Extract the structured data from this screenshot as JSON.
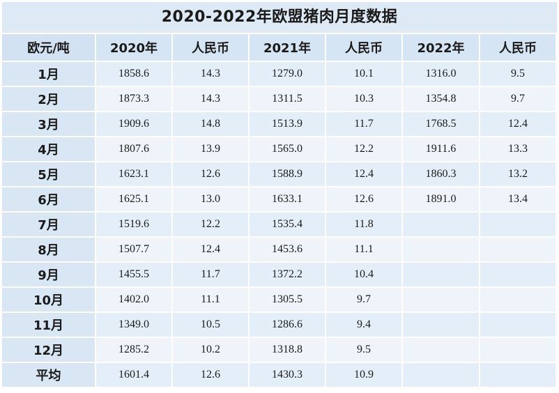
{
  "title": "2020-2022年欧盟猪肉月度数据",
  "headers": [
    "欧元/吨",
    "2020年",
    "人民币",
    "2021年",
    "人民币",
    "2022年",
    "人民币"
  ],
  "rows": [
    [
      "1月",
      "1858.6",
      "14.3",
      "1279.0",
      "10.1",
      "1316.0",
      "9.5"
    ],
    [
      "2月",
      "1873.3",
      "14.3",
      "1311.5",
      "10.3",
      "1354.8",
      "9.7"
    ],
    [
      "3月",
      "1909.6",
      "14.8",
      "1513.9",
      "11.7",
      "1768.5",
      "12.4"
    ],
    [
      "4月",
      "1807.6",
      "13.9",
      "1565.0",
      "12.2",
      "1911.6",
      "13.3"
    ],
    [
      "5月",
      "1623.1",
      "12.6",
      "1588.9",
      "12.4",
      "1860.3",
      "13.2"
    ],
    [
      "6月",
      "1625.1",
      "13.0",
      "1633.1",
      "12.6",
      "1891.0",
      "13.4"
    ],
    [
      "7月",
      "1519.6",
      "12.2",
      "1535.4",
      "11.8",
      "",
      ""
    ],
    [
      "8月",
      "1507.7",
      "12.4",
      "1453.6",
      "11.1",
      "",
      ""
    ],
    [
      "9月",
      "1455.5",
      "11.7",
      "1372.2",
      "10.4",
      "",
      ""
    ],
    [
      "10月",
      "1402.0",
      "11.1",
      "1305.5",
      "9.7",
      "",
      ""
    ],
    [
      "11月",
      "1349.0",
      "10.5",
      "1286.6",
      "9.4",
      "",
      ""
    ],
    [
      "12月",
      "1285.2",
      "10.2",
      "1318.8",
      "9.5",
      "",
      ""
    ],
    [
      "平均",
      "1601.4",
      "12.6",
      "1430.3",
      "10.9",
      "",
      ""
    ]
  ]
}
